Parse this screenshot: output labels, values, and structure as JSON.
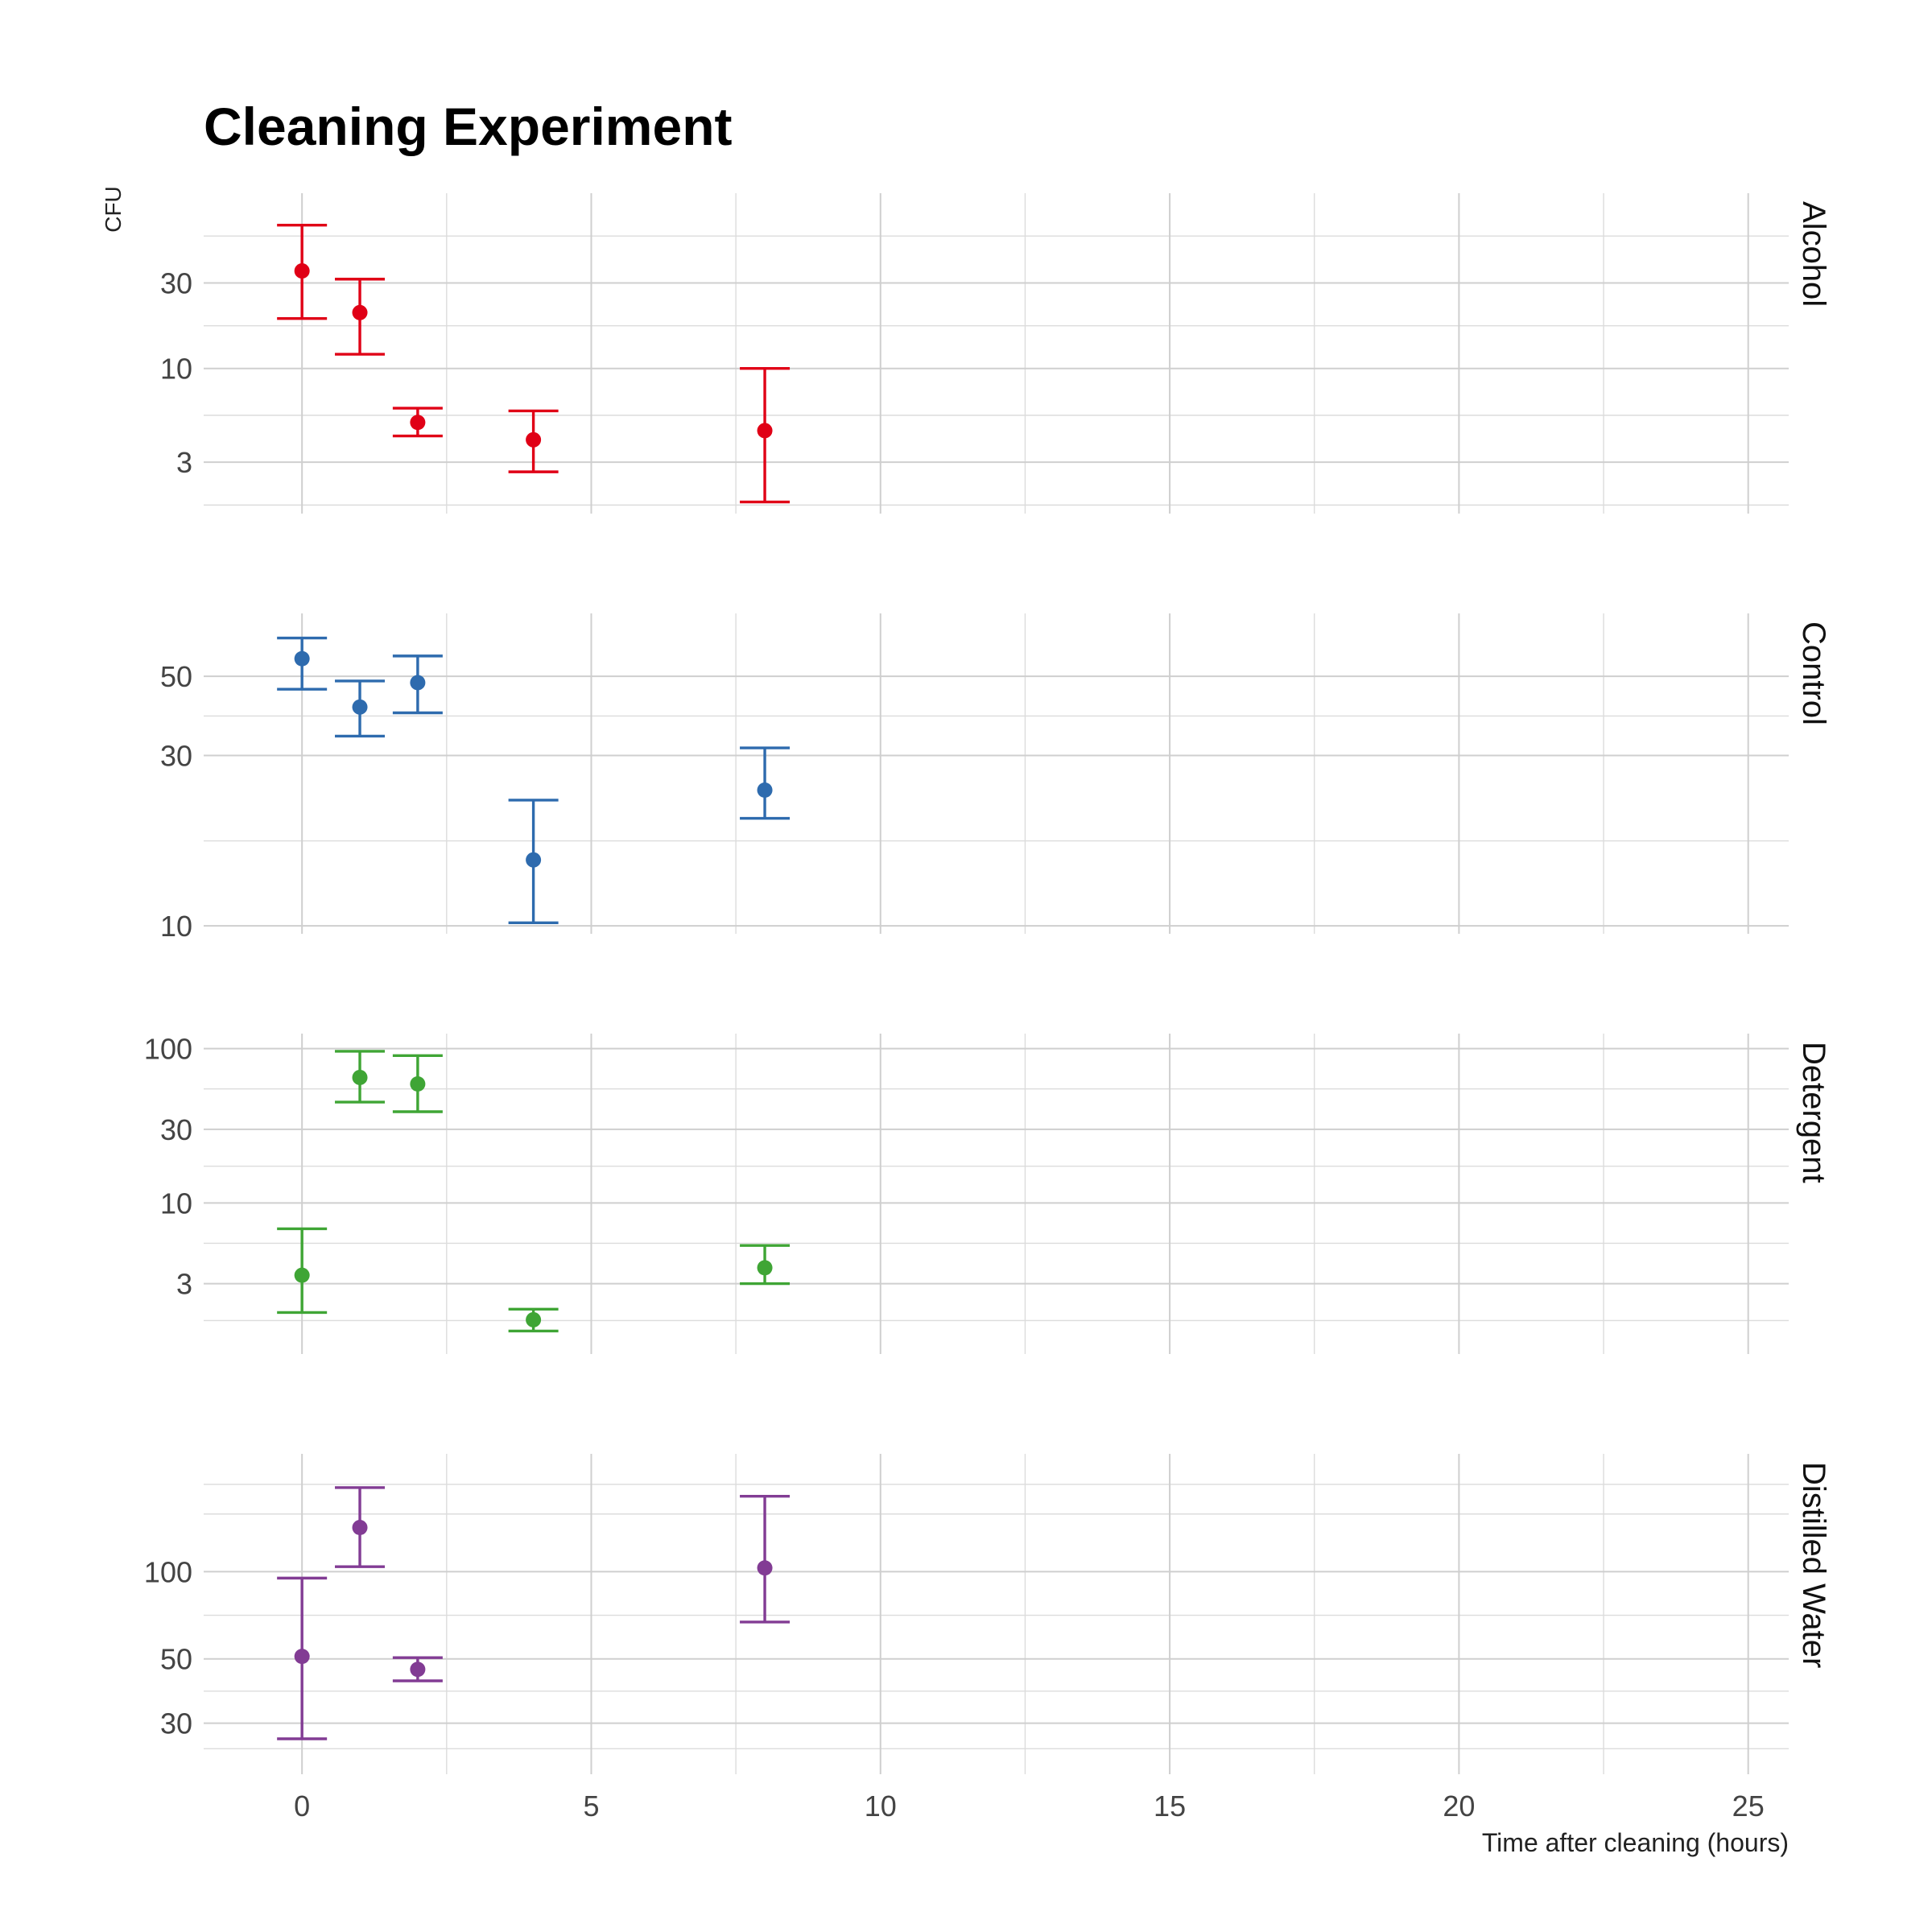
{
  "chart_data": {
    "type": "scatter",
    "title": "Cleaning Experiment",
    "xlabel": "Time after cleaning (hours)",
    "ylabel": "CFU",
    "y_scale": "log",
    "grid": true,
    "x_ticks": [
      0,
      5,
      10,
      15,
      20,
      25
    ],
    "x_tick_labels": [
      "0",
      "5",
      "10",
      "15",
      "20",
      "25"
    ],
    "xlim": [
      -1.7,
      25.7
    ],
    "panels": [
      {
        "name": "Alcohol",
        "color": "#E00016",
        "ylim": [
          1.55,
          95
        ],
        "y_ticks": [
          3,
          10,
          30
        ],
        "y_tick_labels": [
          "3",
          "10",
          "30"
        ],
        "minor_ticks": [
          1.73,
          5.48,
          17.3,
          54.8
        ],
        "points": [
          {
            "x": 0,
            "y": 35,
            "ymin": 19,
            "ymax": 63
          },
          {
            "x": 1,
            "y": 20.5,
            "ymin": 12,
            "ymax": 31.5
          },
          {
            "x": 2,
            "y": 5,
            "ymin": 4.2,
            "ymax": 6
          },
          {
            "x": 4,
            "y": 4,
            "ymin": 2.65,
            "ymax": 5.8
          },
          {
            "x": 8,
            "y": 4.5,
            "ymin": 1.8,
            "ymax": 10
          }
        ]
      },
      {
        "name": "Control",
        "color": "#2E6BAE",
        "ylim": [
          9.5,
          75
        ],
        "y_ticks": [
          10,
          30,
          50
        ],
        "y_tick_labels": [
          "10",
          "30",
          "50"
        ],
        "minor_ticks": [
          17.3,
          38.7
        ],
        "points": [
          {
            "x": 0,
            "y": 56,
            "ymin": 46,
            "ymax": 64
          },
          {
            "x": 1,
            "y": 41,
            "ymin": 34,
            "ymax": 48.5
          },
          {
            "x": 2,
            "y": 48,
            "ymin": 39.5,
            "ymax": 57
          },
          {
            "x": 4,
            "y": 15.3,
            "ymin": 10.2,
            "ymax": 22.5
          },
          {
            "x": 8,
            "y": 24,
            "ymin": 20,
            "ymax": 31.5
          }
        ]
      },
      {
        "name": "Detergent",
        "color": "#3FA535",
        "ylim": [
          1.05,
          125
        ],
        "y_ticks": [
          3,
          10,
          30,
          100
        ],
        "y_tick_labels": [
          "3",
          "10",
          "30",
          "100"
        ],
        "minor_ticks": [
          1.73,
          5.48,
          17.3,
          54.8
        ],
        "points": [
          {
            "x": 0,
            "y": 3.4,
            "ymin": 1.95,
            "ymax": 6.8
          },
          {
            "x": 1,
            "y": 65,
            "ymin": 45,
            "ymax": 96
          },
          {
            "x": 2,
            "y": 59,
            "ymin": 39,
            "ymax": 90
          },
          {
            "x": 4,
            "y": 1.75,
            "ymin": 1.48,
            "ymax": 2.05
          },
          {
            "x": 8,
            "y": 3.8,
            "ymin": 3,
            "ymax": 5.3
          }
        ]
      },
      {
        "name": "Distilled Water",
        "color": "#823C94",
        "ylim": [
          20,
          255
        ],
        "y_ticks": [
          30,
          50,
          100
        ],
        "y_tick_labels": [
          "30",
          "50",
          "100"
        ],
        "minor_ticks": [
          24.5,
          38.7,
          70.7,
          158.1,
          200
        ],
        "points": [
          {
            "x": 0,
            "y": 51,
            "ymin": 26.5,
            "ymax": 95
          },
          {
            "x": 1,
            "y": 142,
            "ymin": 104,
            "ymax": 195
          },
          {
            "x": 2,
            "y": 46,
            "ymin": 42,
            "ymax": 50.5
          },
          {
            "x": 8,
            "y": 103,
            "ymin": 67,
            "ymax": 182
          }
        ]
      }
    ]
  }
}
